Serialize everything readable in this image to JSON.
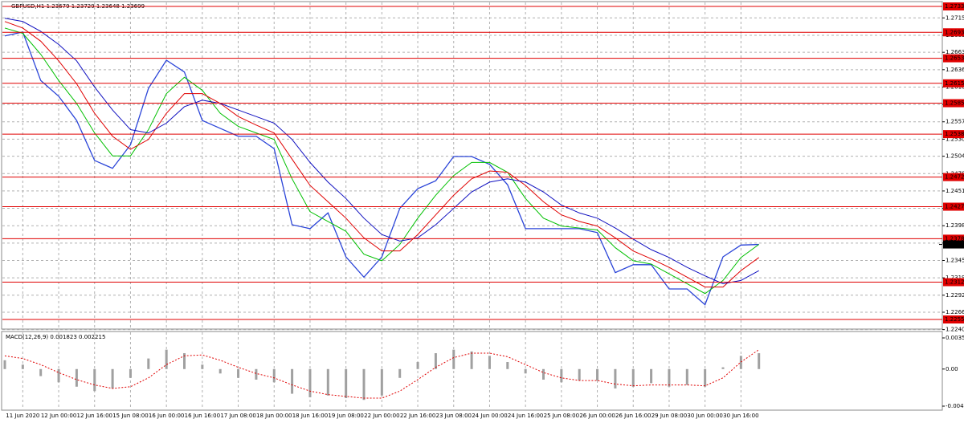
{
  "chart_data": [
    {
      "type": "line",
      "title": "GBPUSD,H1  1.23679 1.23729 1.23648 1.23699",
      "categories": [
        null,
        "11 Jun 2020",
        null,
        "12 Jun 00:00",
        null,
        "12 Jun 16:00",
        null,
        "15 Jun 08:00",
        null,
        "16 Jun 00:00",
        null,
        "16 Jun 16:00",
        null,
        "17 Jun 08:00",
        null,
        "18 Jun 00:00",
        null,
        "18 Jun 16:00",
        null,
        "19 Jun 08:00",
        null,
        "22 Jun 00:00",
        null,
        "22 Jun 16:00",
        null,
        "23 Jun 08:00",
        null,
        "24 Jun 00:00",
        null,
        "24 Jun 16:00",
        null,
        "25 Jun 08:00",
        null,
        "26 Jun 00:00",
        null,
        "26 Jun 16:00",
        null,
        "29 Jun 08:00",
        null,
        "30 Jun 00:00",
        null,
        "30 Jun 16:00",
        null
      ],
      "series": [
        {
          "color": "#2a44d8",
          "values": [
            1.2688,
            1.2694,
            1.262,
            1.2596,
            1.2559,
            1.2498,
            1.2486,
            1.2522,
            1.2608,
            1.2651,
            1.2633,
            1.2559,
            1.2547,
            1.2535,
            1.2535,
            1.2516,
            1.24,
            1.2394,
            1.2418,
            1.2351,
            1.232,
            1.2351,
            1.2425,
            1.2455,
            1.2467,
            1.2504,
            1.2504,
            1.2492,
            1.2461,
            1.2394,
            1.2394,
            1.2394,
            1.2394,
            1.2388,
            1.2327,
            1.2339,
            1.2339,
            1.2302,
            1.2302,
            1.2278,
            1.2351,
            1.2369,
            1.23699
          ]
        },
        {
          "color": "#00c000",
          "values": [
            1.27,
            1.2692,
            1.266,
            1.262,
            1.2585,
            1.254,
            1.2505,
            1.2505,
            1.2545,
            1.26,
            1.2625,
            1.2605,
            1.257,
            1.255,
            1.254,
            1.253,
            1.247,
            1.242,
            1.2405,
            1.239,
            1.2355,
            1.2345,
            1.237,
            1.241,
            1.2445,
            1.2475,
            1.2495,
            1.2495,
            1.248,
            1.244,
            1.241,
            1.2398,
            1.2395,
            1.2392,
            1.2365,
            1.2345,
            1.234,
            1.2325,
            1.231,
            1.2295,
            1.2315,
            1.235,
            1.237
          ]
        },
        {
          "color": "#e00000",
          "values": [
            1.271,
            1.27,
            1.268,
            1.265,
            1.2615,
            1.257,
            1.2535,
            1.2515,
            1.253,
            1.257,
            1.26,
            1.26,
            1.2585,
            1.2565,
            1.2552,
            1.254,
            1.25,
            1.246,
            1.2435,
            1.241,
            1.238,
            1.236,
            1.236,
            1.2385,
            1.2415,
            1.2445,
            1.247,
            1.2482,
            1.248,
            1.246,
            1.2435,
            1.2415,
            1.2405,
            1.2398,
            1.238,
            1.236,
            1.2348,
            1.2335,
            1.232,
            1.2305,
            1.2305,
            1.233,
            1.235
          ]
        },
        {
          "color": "#1010c0",
          "values": [
            1.2715,
            1.271,
            1.2695,
            1.2675,
            1.265,
            1.261,
            1.2575,
            1.2545,
            1.254,
            1.2555,
            1.258,
            1.259,
            1.2585,
            1.2575,
            1.2565,
            1.2555,
            1.253,
            1.2495,
            1.2465,
            1.244,
            1.241,
            1.2385,
            1.2375,
            1.238,
            1.24,
            1.2425,
            1.245,
            1.2465,
            1.247,
            1.2465,
            1.245,
            1.243,
            1.2418,
            1.241,
            1.2395,
            1.2378,
            1.2362,
            1.235,
            1.2335,
            1.2322,
            1.231,
            1.2315,
            1.233
          ]
        }
      ],
      "ylim": [
        1.22408,
        1.27428
      ],
      "yticks": [
        1.27155,
        {
          "value": 1.2689,
          "label": "1.26890"
        },
        {
          "value": 1.2663,
          "label": "1.26630"
        },
        1.26365,
        {
          "value": 1.261,
          "label": "1.26100"
        },
        1.25835,
        {
          "value": 1.2557,
          "label": "1.25570"
        },
        1.25305,
        1.25045,
        {
          "value": 1.2478,
          "label": "1.24780"
        },
        1.24515,
        {
          "value": 1.2425,
          "label": "1.24250"
        },
        1.23985,
        {
          "value": 1.2372,
          "label": "1.23720"
        },
        1.23455,
        {
          "value": 1.2319,
          "label": "1.23190"
        },
        1.22925,
        1.22665,
        {
          "value": 1.224,
          "label": "1.22400"
        }
      ],
      "levels": [
        {
          "value": 1.2733,
          "label": "1.27330",
          "color": "#e00000"
        },
        {
          "value": 1.26935,
          "label": "1.26935",
          "color": "#e00000"
        },
        {
          "value": 1.26539,
          "label": "1.26539",
          "color": "#e00000"
        },
        {
          "value": 1.26157,
          "label": "1.26157",
          "color": "#e00000"
        },
        {
          "value": 1.25854,
          "label": "1.25854",
          "color": "#e00000"
        },
        {
          "value": 1.25382,
          "label": "1.25382",
          "color": "#e00000"
        },
        {
          "value": 1.24727,
          "label": "1.24727",
          "color": "#e00000"
        },
        {
          "value": 1.24275,
          "label": "1.24275",
          "color": "#e00000"
        },
        {
          "value": 1.23787,
          "label": "1.23787",
          "color": "#e00000"
        },
        {
          "value": 1.23124,
          "label": "1.23124",
          "color": "#e00000"
        },
        {
          "value": 1.22555,
          "label": "1.22555",
          "color": "#e00000"
        }
      ],
      "last_price": {
        "value": 1.23699,
        "label": "1.23699",
        "color": "#000000"
      },
      "grid": true
    },
    {
      "type": "macd",
      "title": "MACD(12,26,9) 0.001823 0.002215",
      "series": [
        {
          "color": "#a0a0a0",
          "values": [
            0.001,
            0.0005,
            -0.0008,
            -0.0015,
            -0.002,
            -0.0025,
            -0.0022,
            -0.001,
            0.0012,
            0.0022,
            0.0018,
            0.0005,
            -0.0005,
            -0.001,
            -0.0012,
            -0.0015,
            -0.0028,
            -0.0032,
            -0.003,
            -0.0033,
            -0.0035,
            -0.003,
            -0.001,
            0.0008,
            0.0018,
            0.0022,
            0.002,
            0.0015,
            0.0008,
            -0.0005,
            -0.0012,
            -0.0015,
            -0.0013,
            -0.0013,
            -0.0022,
            -0.002,
            -0.0016,
            -0.002,
            -0.0018,
            -0.002,
            0.0002,
            0.0015,
            0.0018
          ]
        },
        {
          "color": "#e00000",
          "values": [
            0.0015,
            0.0012,
            0.0005,
            -0.0004,
            -0.0012,
            -0.0018,
            -0.0022,
            -0.002,
            -0.001,
            0.0005,
            0.0015,
            0.0016,
            0.001,
            0.0002,
            -0.0005,
            -0.001,
            -0.0018,
            -0.0025,
            -0.0029,
            -0.0031,
            -0.0033,
            -0.0033,
            -0.0025,
            -0.0012,
            0.0002,
            0.0013,
            0.0018,
            0.0018,
            0.0014,
            0.0005,
            -0.0004,
            -0.001,
            -0.0013,
            -0.0013,
            -0.0017,
            -0.0019,
            -0.0018,
            -0.0018,
            -0.0018,
            -0.0019,
            -0.001,
            0.0008,
            0.0022
          ]
        }
      ],
      "ylim": [
        -0.004207,
        0.003532
      ],
      "yticks": [
        0.003532,
        {
          "value": 0,
          "label": "0.00"
        },
        -0.004207
      ]
    }
  ]
}
